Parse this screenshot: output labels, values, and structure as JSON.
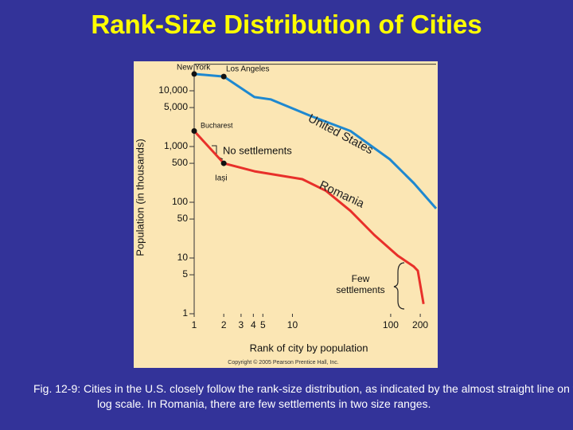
{
  "chart_data": {
    "type": "line",
    "title": "Rank-Size Distribution of Cities",
    "xlabel": "Rank of city by population",
    "ylabel": "Population (in thousands)",
    "log_x": true,
    "log_y": true,
    "xlim": [
      1,
      290
    ],
    "ylim": [
      1,
      30000
    ],
    "xticks": [
      1,
      2,
      3,
      4,
      5,
      10,
      100,
      200
    ],
    "yticks": [
      1,
      5,
      10,
      50,
      100,
      500,
      {
        "value": 1000,
        "label": "1,000"
      },
      {
        "value": 5000,
        "label": "5,000"
      },
      {
        "value": 10000,
        "label": "10,000"
      }
    ],
    "series": [
      {
        "name": "United States",
        "color": "#1e88d0",
        "x": [
          1,
          2,
          4.1,
          6,
          15,
          39,
          98,
          172,
          290
        ],
        "values": [
          20000,
          18000,
          7700,
          7000,
          3600,
          1900,
          590,
          220,
          77
        ]
      },
      {
        "name": "Romania",
        "color": "#e8302a",
        "x": [
          1,
          2,
          4.1,
          12.6,
          22,
          39,
          68,
          118,
          172,
          189,
          216
        ],
        "values": [
          1900,
          500,
          360,
          260,
          160,
          70,
          26,
          11,
          7,
          5.9,
          1.5
        ]
      }
    ],
    "annotations": [
      "New York",
      "Los Angeles",
      "Bucharest",
      "Iași",
      "No settlements",
      "Few settlements"
    ],
    "copyright": "Copyright © 2005 Pearson Prentice Hall, Inc.",
    "caption": "Fig. 12-9: Cities in the U.S. closely follow the rank-size distribution, as indicated by the almost straight line on this log scale. In Romania, there are few settlements in two size ranges."
  }
}
